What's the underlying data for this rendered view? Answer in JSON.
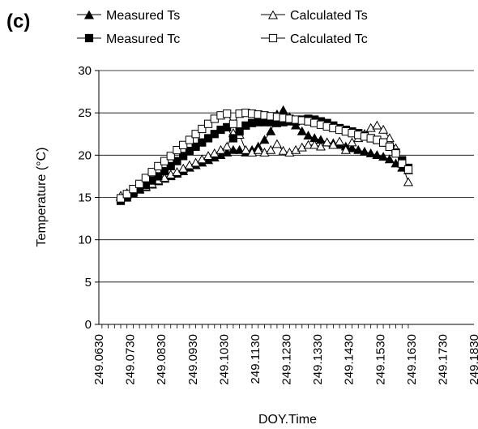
{
  "panel_label": "(c)",
  "chart_data": {
    "type": "line",
    "xlabel": "DOY.Time",
    "ylabel": "Temperature (°C)",
    "ylim": [
      0,
      30
    ],
    "yticks": [
      "0",
      "5",
      "10",
      "15",
      "20",
      "25",
      "30"
    ],
    "xlim": [
      249.063,
      249.183
    ],
    "xticks": [
      "249.0630",
      "249.0730",
      "249.0830",
      "249.0930",
      "249.1030",
      "249.1130",
      "249.1230",
      "249.1330",
      "249.1430",
      "249.1530",
      "249.1630",
      "249.1730",
      "249.1830"
    ],
    "grid": "horizontal",
    "legend_position": "top",
    "legend": [
      {
        "label": "Measured Ts",
        "marker": "triangle",
        "filled": true
      },
      {
        "label": "Calculated Ts",
        "marker": "triangle",
        "filled": false
      },
      {
        "label": "Measured Tc",
        "marker": "square",
        "filled": true
      },
      {
        "label": "Calculated Tc",
        "marker": "square",
        "filled": false
      }
    ],
    "x_start": 249.07,
    "x_step": 0.002,
    "series": [
      {
        "name": "Measured Ts",
        "marker": "triangle",
        "filled": true,
        "values": [
          15.0,
          15.3,
          15.6,
          15.9,
          16.2,
          16.5,
          16.9,
          17.2,
          17.5,
          17.8,
          18.1,
          18.5,
          18.8,
          19.1,
          19.4,
          19.7,
          20.0,
          20.3,
          20.6,
          20.6,
          20.3,
          20.6,
          21.0,
          21.8,
          22.8,
          24.8,
          25.3,
          24.5,
          23.5,
          22.8,
          22.3,
          22.0,
          21.8,
          21.5,
          21.4,
          21.2,
          21.0,
          20.8,
          20.6,
          20.4,
          20.2,
          20.0,
          19.8,
          19.5,
          19.0,
          18.5,
          18.2
        ]
      },
      {
        "name": "Calculated Ts",
        "marker": "triangle",
        "filled": false,
        "values": [
          15.2,
          15.5,
          15.8,
          16.0,
          16.3,
          16.6,
          17.0,
          17.3,
          17.7,
          18.0,
          18.4,
          18.8,
          19.1,
          19.5,
          19.9,
          20.2,
          20.6,
          21.0,
          22.6,
          22.4,
          20.6,
          20.3,
          20.6,
          20.3,
          20.6,
          21.3,
          20.5,
          20.3,
          20.6,
          20.9,
          21.2,
          21.2,
          21.0,
          21.5,
          21.2,
          21.6,
          20.6,
          21.5,
          22.0,
          22.5,
          23.2,
          23.5,
          23.0,
          22.0,
          20.8,
          19.0,
          16.8
        ]
      },
      {
        "name": "Measured Tc",
        "marker": "square",
        "filled": true,
        "values": [
          14.6,
          15.0,
          15.5,
          16.0,
          16.5,
          17.0,
          17.5,
          18.1,
          18.7,
          19.3,
          19.9,
          20.5,
          21.0,
          21.5,
          22.0,
          22.5,
          23.0,
          23.3,
          22.0,
          22.8,
          23.5,
          23.8,
          23.9,
          23.9,
          23.9,
          23.8,
          23.9,
          24.0,
          24.0,
          24.2,
          24.3,
          24.2,
          24.0,
          23.8,
          23.5,
          23.2,
          23.0,
          22.8,
          22.6,
          22.3,
          22.0,
          21.8,
          21.5,
          21.0,
          20.3,
          19.4,
          18.5
        ]
      },
      {
        "name": "Calculated Tc",
        "marker": "square",
        "filled": false,
        "values": [
          14.9,
          15.4,
          16.0,
          16.6,
          17.3,
          18.0,
          18.7,
          19.3,
          19.9,
          20.6,
          21.2,
          21.8,
          22.5,
          23.1,
          23.7,
          24.3,
          24.7,
          24.9,
          23.7,
          24.9,
          25.0,
          24.9,
          24.8,
          24.7,
          24.6,
          24.5,
          24.4,
          24.3,
          24.2,
          24.1,
          24.0,
          23.8,
          23.6,
          23.4,
          23.2,
          23.0,
          22.8,
          22.6,
          22.4,
          22.2,
          22.0,
          21.8,
          21.5,
          21.0,
          20.2,
          19.0,
          18.3
        ]
      }
    ]
  }
}
